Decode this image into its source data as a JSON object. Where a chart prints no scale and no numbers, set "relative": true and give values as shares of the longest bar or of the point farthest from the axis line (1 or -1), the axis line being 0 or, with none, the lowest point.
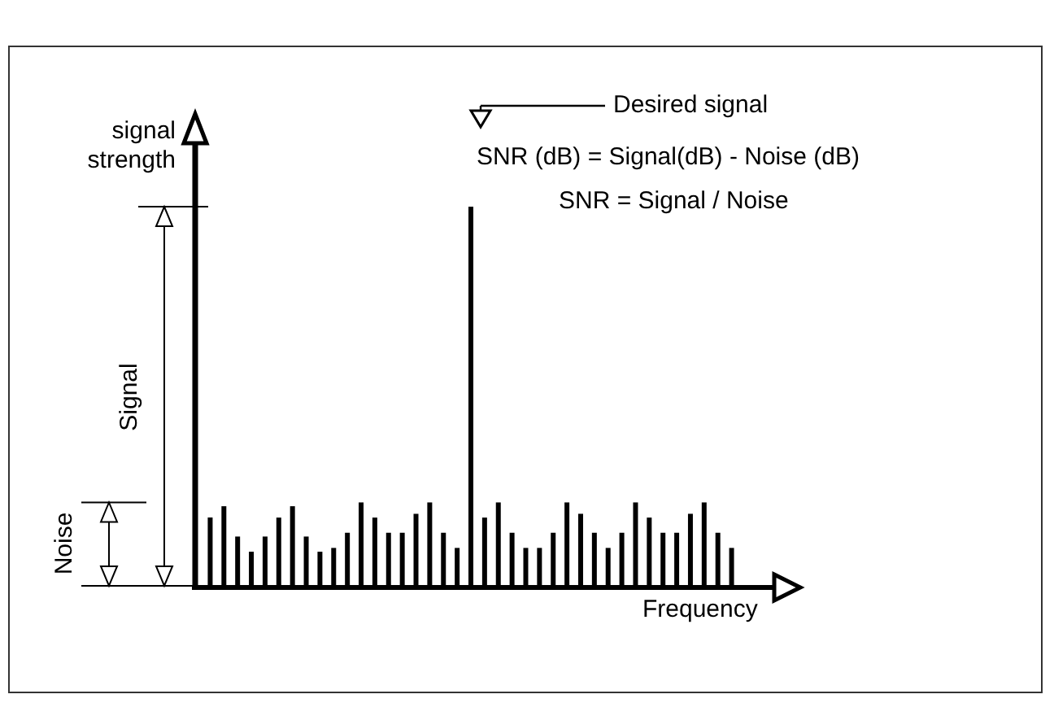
{
  "chart_data": {
    "type": "bar",
    "relative": true,
    "xlabel": "Frequency",
    "ylabel": "signal strength",
    "color": "#000000",
    "categories": [
      null,
      null,
      null,
      null,
      null,
      null,
      null,
      null,
      null,
      null,
      null,
      null,
      null,
      null,
      null,
      null,
      null,
      null,
      null,
      null,
      null,
      null,
      null,
      null,
      null,
      null,
      null,
      null,
      null,
      null,
      null,
      null,
      null,
      null,
      null,
      null,
      null,
      null,
      null
    ],
    "values": [
      0.18,
      0.21,
      0.13,
      0.09,
      0.13,
      0.18,
      0.21,
      0.13,
      0.09,
      0.1,
      0.14,
      0.22,
      0.18,
      0.14,
      0.14,
      0.19,
      0.22,
      0.14,
      0.1,
      1,
      0.18,
      0.22,
      0.14,
      0.1,
      0.1,
      0.14,
      0.22,
      0.19,
      0.14,
      0.1,
      0.14,
      0.22,
      0.18,
      0.14,
      0.14,
      0.19,
      0.22,
      0.14,
      0.1
    ],
    "annotations": [
      "Desired signal",
      "SNR (dB) = Signal(dB) - Noise (dB)",
      "SNR = Signal / Noise",
      "Signal",
      "Noise"
    ]
  }
}
